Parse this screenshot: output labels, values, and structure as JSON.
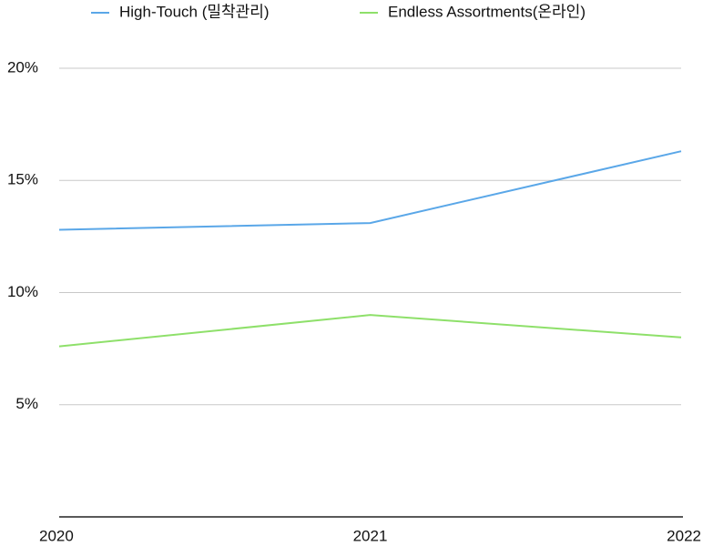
{
  "chart_data": {
    "type": "line",
    "categories": [
      "2020",
      "2021",
      "2022"
    ],
    "series": [
      {
        "name": "High-Touch (밀착관리)",
        "color": "#5aa7e8",
        "values": [
          12.8,
          13.1,
          16.3
        ]
      },
      {
        "name": "Endless Assortments(온라인)",
        "color": "#8ee06a",
        "values": [
          7.6,
          9.0,
          8.0
        ]
      }
    ],
    "ylim": [
      0,
      20
    ],
    "yticks": [
      {
        "value": 5,
        "label": "5%"
      },
      {
        "value": 10,
        "label": "10%"
      },
      {
        "value": 15,
        "label": "15%"
      },
      {
        "value": 20,
        "label": "20%"
      }
    ],
    "grid": true
  }
}
